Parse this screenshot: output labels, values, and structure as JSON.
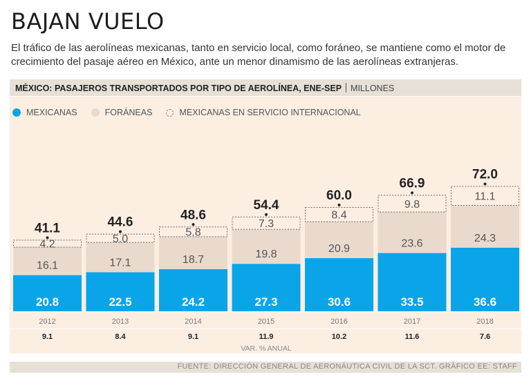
{
  "title": "BAJAN VUELO",
  "subtitle": "El tráfico de las aerolíneas mexicanas, tanto en servicio local, como foráneo, se mantiene como el motor de crecimiento del pasaje aéreo en México, ante un menor dinamismo de las aerolíneas extranjeras.",
  "header": {
    "main": "MÉXICO: PASAJEROS TRANSPORTADOS POR TIPO DE AEROLÍNEA, ENE-SEP",
    "unit": "MILLONES"
  },
  "legend": {
    "mexicanas": "MEXICANAS",
    "foraneas": "FORÁNEAS",
    "internacional": "MEXICANAS EN SERVICIO INTERNACIONAL"
  },
  "colors": {
    "mexicanas": "#0aa5e8",
    "foraneas": "#e9dacd",
    "internacional": "#fdeee2",
    "background": "#fdeee2"
  },
  "chart_data": {
    "type": "bar",
    "stacked": true,
    "title": "MÉXICO: PASAJEROS TRANSPORTADOS POR TIPO DE AEROLÍNEA, ENE-SEP",
    "ylabel": "Millones",
    "categories": [
      "2012",
      "2013",
      "2014",
      "2015",
      "2016",
      "2017",
      "2018"
    ],
    "series": [
      {
        "name": "MEXICANAS",
        "values": [
          "20.8",
          "22.5",
          "24.2",
          "27.3",
          "30.6",
          "33.5",
          "36.6"
        ]
      },
      {
        "name": "FORÁNEAS",
        "values": [
          "16.1",
          "17.1",
          "18.7",
          "19.8",
          "20.9",
          "23.6",
          "24.3"
        ]
      },
      {
        "name": "MEXICANAS EN SERVICIO INTERNACIONAL",
        "values": [
          "4.2",
          "5.0",
          "5.8",
          "7.3",
          "8.4",
          "9.8",
          "11.1"
        ]
      }
    ],
    "totals": [
      "41.1",
      "44.6",
      "48.6",
      "54.4",
      "60.0",
      "66.9",
      "72.0"
    ],
    "var_pct_anual": [
      "9.1",
      "8.4",
      "9.1",
      "11.9",
      "10.2",
      "11.6",
      "7.6"
    ],
    "var_label": "VAR. % ANUAL",
    "ylim": [
      0,
      80
    ]
  },
  "source": "FUENTE: DIRECCIÓN GENERAL DE AERONÁUTICA CIVIL DE LA SCT. GRÁFICO EE: STAFF"
}
